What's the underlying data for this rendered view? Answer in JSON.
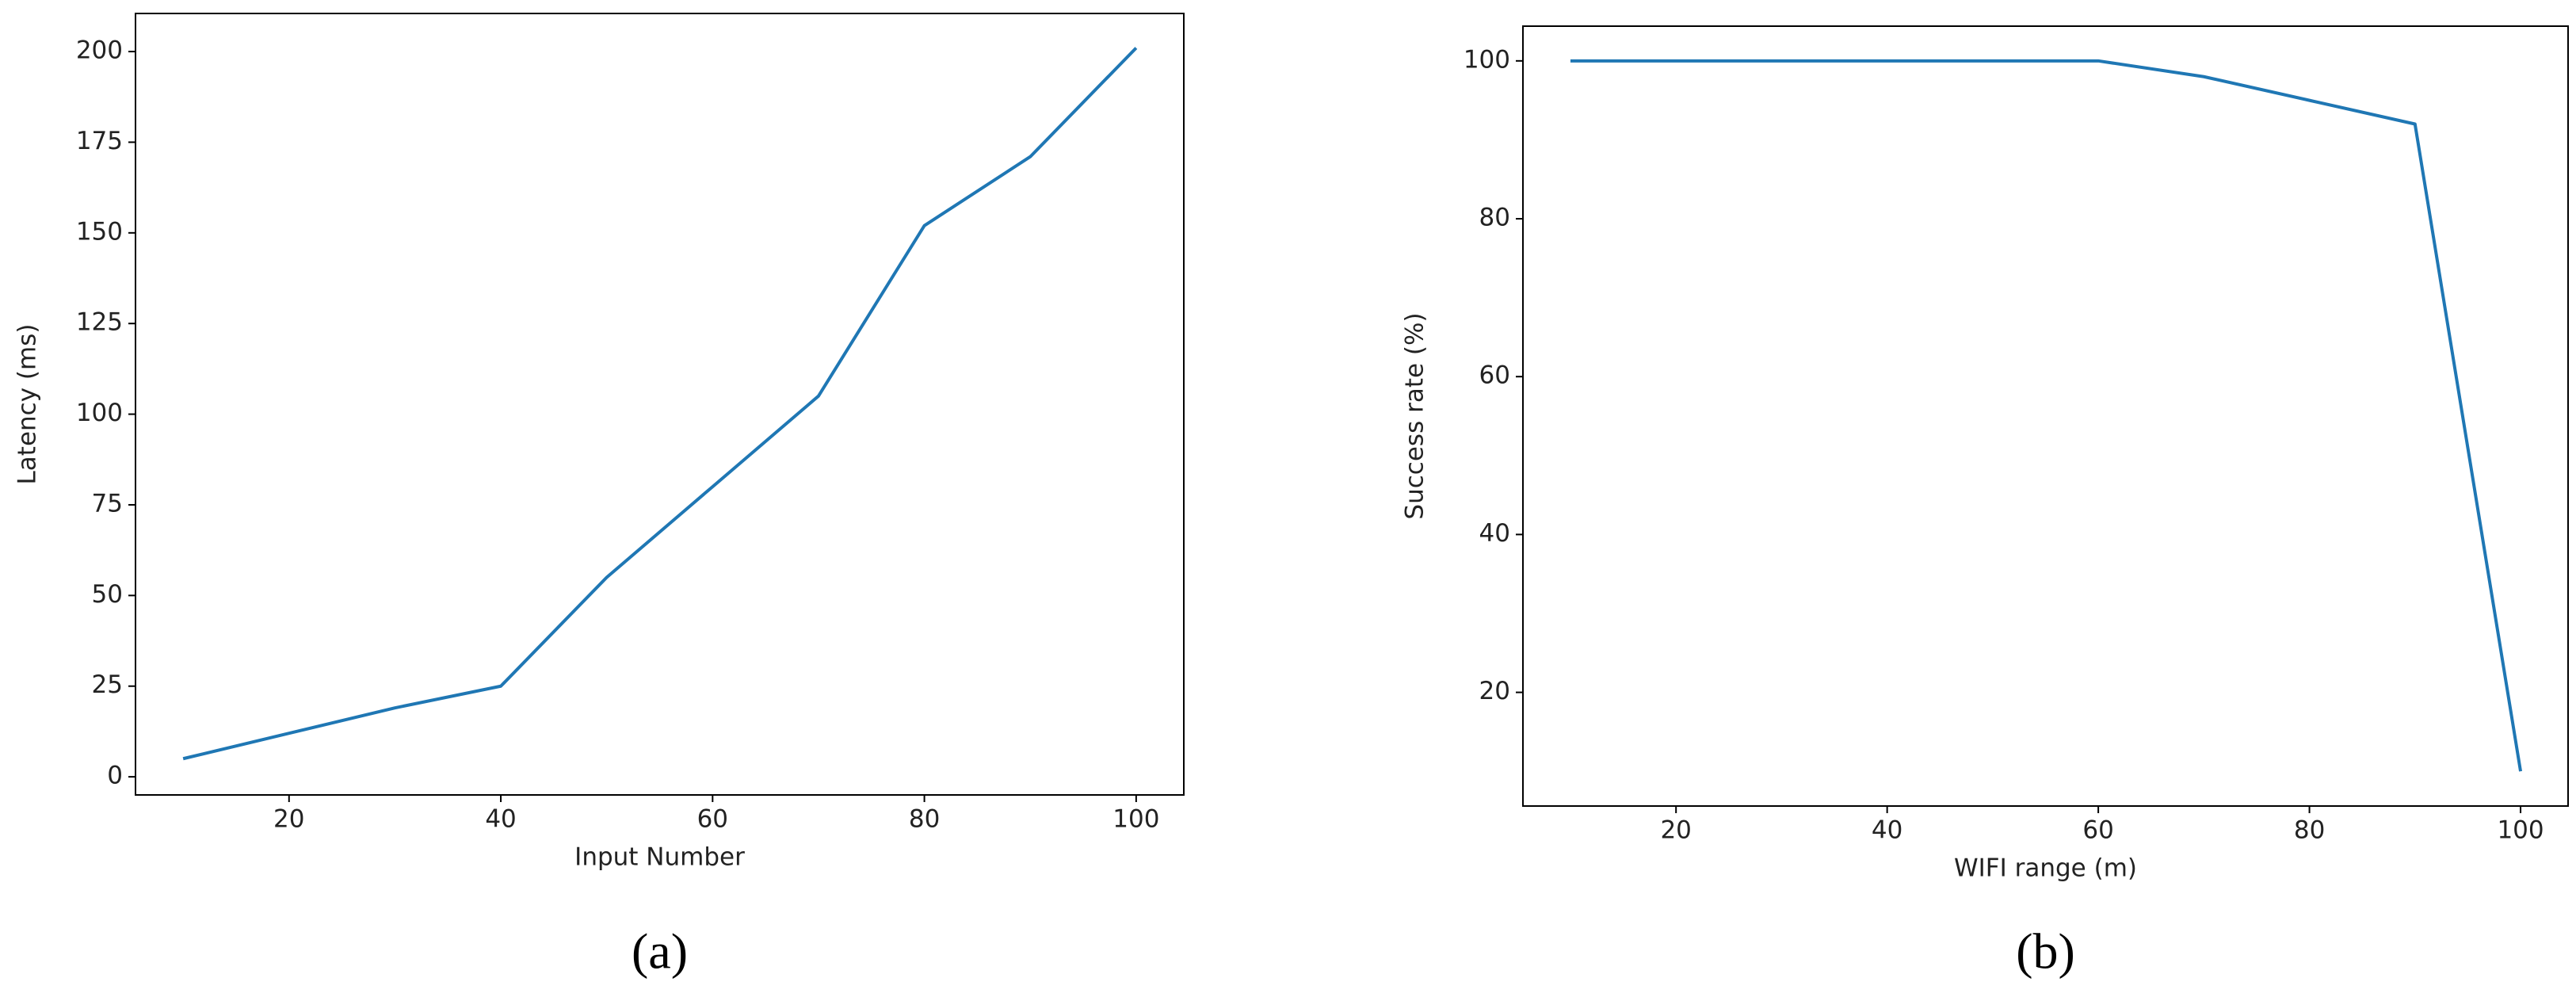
{
  "chart_data": [
    {
      "type": "line",
      "caption": "(a)",
      "xlabel": "Input Number",
      "ylabel": "Latency (ms)",
      "x": [
        10,
        20,
        30,
        40,
        50,
        60,
        70,
        80,
        90,
        100
      ],
      "series": [
        {
          "color": "#1f77b4",
          "values": [
            5,
            12,
            19,
            25,
            55,
            80,
            105,
            152,
            171,
            201
          ]
        }
      ],
      "xlim": [
        5.5,
        104.5
      ],
      "xticks": [
        20,
        40,
        60,
        80,
        100
      ],
      "ylim": [
        -5,
        210.5
      ],
      "yticks": [
        0,
        25,
        50,
        75,
        100,
        125,
        150,
        175,
        200
      ]
    },
    {
      "type": "line",
      "caption": "(b)",
      "xlabel": "WIFI range (m)",
      "ylabel": "Success rate (%)",
      "x": [
        10,
        20,
        30,
        40,
        50,
        60,
        70,
        80,
        90,
        100
      ],
      "series": [
        {
          "color": "#1f77b4",
          "values": [
            100,
            100,
            100,
            100,
            100,
            100,
            98,
            95,
            92,
            10
          ]
        }
      ],
      "xlim": [
        5.5,
        104.5
      ],
      "xticks": [
        20,
        40,
        60,
        80,
        100
      ],
      "ylim": [
        5.6,
        104.4
      ],
      "yticks": [
        20,
        40,
        60,
        80,
        100
      ]
    }
  ]
}
